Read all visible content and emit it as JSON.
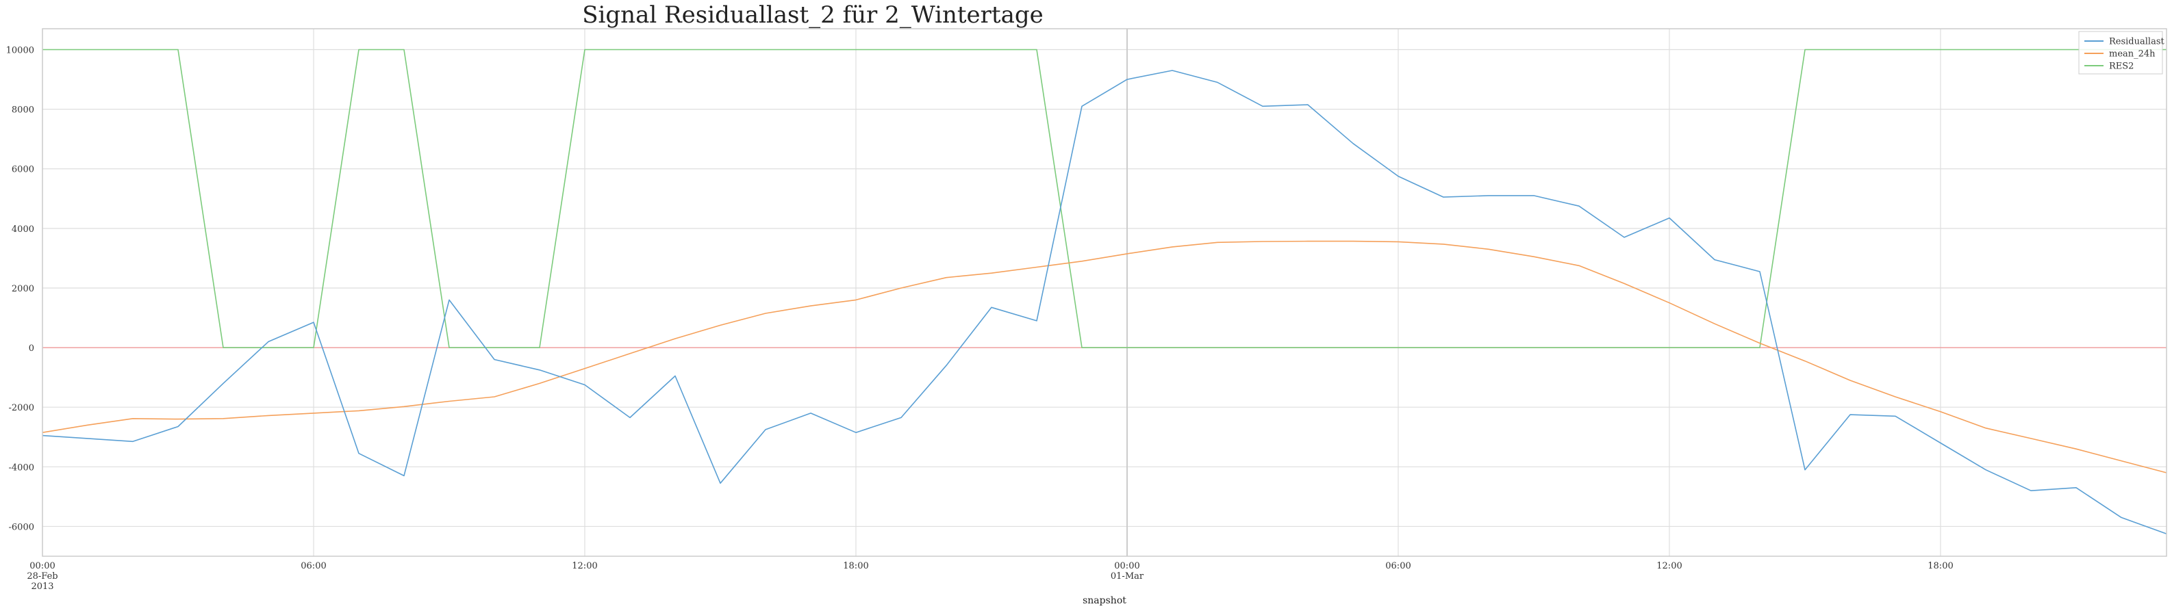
{
  "chart_data": {
    "type": "line",
    "title": "Signal Residuallast_2 für 2_Wintertage",
    "xlabel": "snapshot",
    "ylabel": "",
    "x_start": "2013-02-28 00:00",
    "x_step_hours": 1,
    "xlim_hours": [
      0,
      47
    ],
    "ylim": [
      -7000,
      10700
    ],
    "yticks": [
      -6000,
      -4000,
      -2000,
      0,
      2000,
      4000,
      6000,
      8000,
      10000
    ],
    "xticks": [
      {
        "hour": 0,
        "lines": [
          "00:00",
          "28-Feb",
          "2013"
        ]
      },
      {
        "hour": 6,
        "lines": [
          "06:00"
        ]
      },
      {
        "hour": 12,
        "lines": [
          "12:00"
        ]
      },
      {
        "hour": 18,
        "lines": [
          "18:00"
        ]
      },
      {
        "hour": 24,
        "lines": [
          "00:00",
          "01-Mar"
        ]
      },
      {
        "hour": 30,
        "lines": [
          "06:00"
        ]
      },
      {
        "hour": 36,
        "lines": [
          "12:00"
        ]
      },
      {
        "hour": 42,
        "lines": [
          "18:00"
        ]
      }
    ],
    "grid": true,
    "legend_position": "top-right",
    "reference_lines": [
      {
        "type": "horizontal",
        "value": 0,
        "color": "#f0a0a0"
      },
      {
        "type": "vertical",
        "hour": 24,
        "color": "#cccccc"
      }
    ],
    "series": [
      {
        "name": "Residuallast",
        "color": "#5a9fd4",
        "values": [
          -2950,
          -3050,
          -3150,
          -2650,
          -1200,
          200,
          850,
          -3550,
          -4300,
          1600,
          -400,
          -750,
          -1250,
          -2350,
          -950,
          -4550,
          -2750,
          -2200,
          -2850,
          -2350,
          -600,
          1350,
          900,
          8100,
          9000,
          9300,
          8900,
          8100,
          8150,
          6850,
          5750,
          5050,
          5100,
          5100,
          4750,
          3700,
          4350,
          2950,
          2550,
          -4100,
          -2250,
          -2300,
          -3200,
          -4100,
          -4800,
          -4700,
          -5700,
          -6250
        ]
      },
      {
        "name": "mean_24h",
        "color": "#f5a05a",
        "values": [
          -2850,
          -2600,
          -2380,
          -2400,
          -2380,
          -2280,
          -2200,
          -2120,
          -1980,
          -1800,
          -1650,
          -1200,
          -700,
          -200,
          300,
          750,
          1150,
          1400,
          1600,
          2000,
          2350,
          2500,
          2700,
          2900,
          3150,
          3380,
          3530,
          3560,
          3570,
          3570,
          3550,
          3470,
          3300,
          3050,
          2750,
          2150,
          1500,
          800,
          150,
          -450,
          -1100,
          -1650,
          -2150,
          -2700,
          -3050,
          -3400,
          -3800,
          -4200
        ]
      },
      {
        "name": "RES2",
        "color": "#7ccb7c",
        "values": [
          10000,
          10000,
          10000,
          10000,
          0,
          0,
          0,
          10000,
          10000,
          0,
          0,
          0,
          10000,
          10000,
          10000,
          10000,
          10000,
          10000,
          10000,
          10000,
          10000,
          10000,
          10000,
          0,
          0,
          0,
          0,
          0,
          0,
          0,
          0,
          0,
          0,
          0,
          0,
          0,
          0,
          0,
          0,
          10000,
          10000,
          10000,
          10000,
          10000,
          10000,
          10000,
          10000,
          10000
        ]
      }
    ]
  }
}
